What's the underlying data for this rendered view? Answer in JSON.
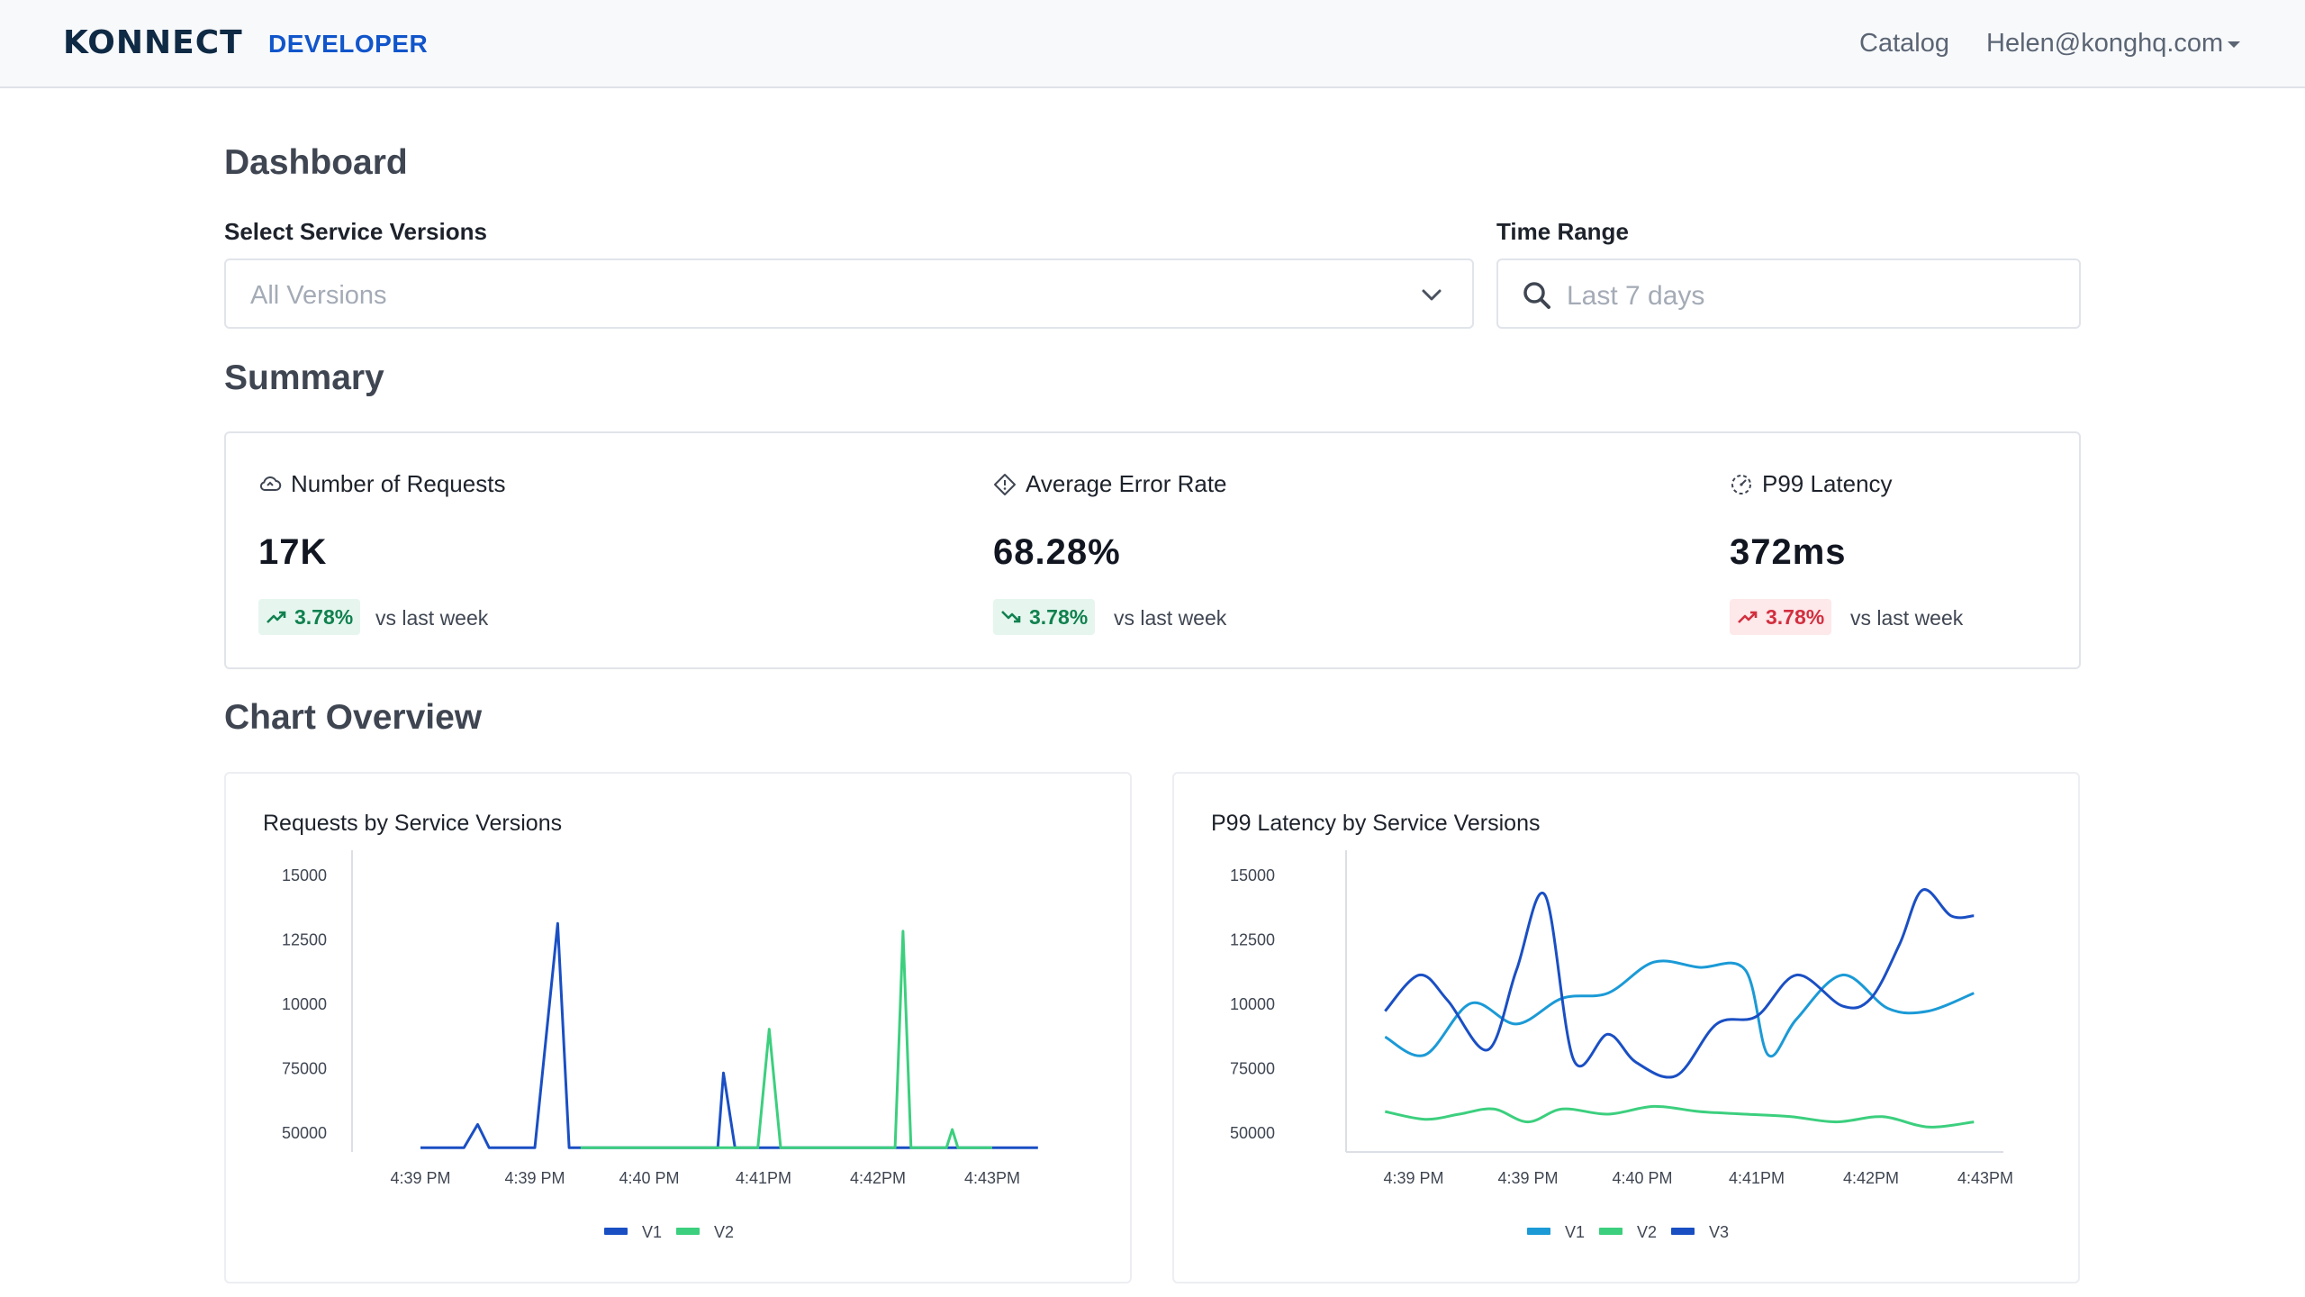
{
  "nav": {
    "logo": "KONNECT",
    "logo_sub": "DEVELOPER",
    "catalog": "Catalog",
    "user": "Helen@konghq.com"
  },
  "page": {
    "title": "Dashboard",
    "versions_label": "Select Service Versions",
    "versions_placeholder": "All Versions",
    "time_label": "Time Range",
    "time_placeholder": "Last 7 days",
    "summary_title": "Summary",
    "charts_title": "Chart Overview"
  },
  "summary": [
    {
      "icon": "cloud-icon",
      "title": "Number of Requests",
      "value": "17K",
      "change": "3.78%",
      "trend": "up",
      "status": "good",
      "compare": "vs last week"
    },
    {
      "icon": "diamond-alert-icon",
      "title": "Average Error Rate",
      "value": "68.28%",
      "change": "3.78%",
      "trend": "down",
      "status": "good",
      "compare": "vs last week"
    },
    {
      "icon": "gauge-icon",
      "title": "P99 Latency",
      "value": "372ms",
      "change": "3.78%",
      "trend": "up",
      "status": "bad",
      "compare": "vs last week"
    }
  ],
  "colors": {
    "v1_blue": "#1a4fc4",
    "v2_green": "#3ccf7e",
    "v1_teal": "#1b9ad6",
    "good": "#11814f",
    "bad": "#d22f3f"
  },
  "chart_data": [
    {
      "type": "line",
      "title": "Requests by Service Versions",
      "x_ticks": [
        "4:39 PM",
        "4:39 PM",
        "4:40 PM",
        "4:41PM",
        "4:42PM",
        "4:43PM"
      ],
      "y_ticks": [
        "15000",
        "12500",
        "10000",
        "75000",
        "50000"
      ],
      "grid": false,
      "legend": "bottom-center",
      "series": [
        {
          "name": "V1",
          "color": "#1a4fc4",
          "x": [
            0,
            0.38,
            0.5,
            0.6,
            1.0,
            1.2,
            1.3,
            1.4,
            2.6,
            2.65,
            2.75,
            2.85,
            5.25,
            5.4
          ],
          "y": [
            4400,
            4400,
            5300,
            4400,
            4400,
            13100,
            4400,
            4400,
            4400,
            7300,
            4400,
            4400,
            4400,
            4400
          ]
        },
        {
          "name": "V2",
          "color": "#3ccf7e",
          "x": [
            1.4,
            2.95,
            3.05,
            3.15,
            4.15,
            4.22,
            4.29,
            4.6,
            4.65,
            4.7,
            5.0
          ],
          "y": [
            4400,
            4400,
            9000,
            4400,
            4400,
            12800,
            4400,
            4400,
            5100,
            4400,
            4400
          ]
        }
      ]
    },
    {
      "type": "line",
      "title": "P99 Latency by Service Versions",
      "x_ticks": [
        "4:39 PM",
        "4:39 PM",
        "4:40 PM",
        "4:41PM",
        "4:42PM",
        "4:43PM"
      ],
      "y_ticks": [
        "15000",
        "12500",
        "10000",
        "75000",
        "50000"
      ],
      "grid": false,
      "legend": "bottom-center",
      "series": [
        {
          "name": "V1",
          "color": "#1b9ad6",
          "x": [
            -0.25,
            0.1,
            0.5,
            0.9,
            1.3,
            1.7,
            2.1,
            2.5,
            2.9,
            3.1,
            3.35,
            3.75,
            4.15,
            4.5,
            4.9
          ],
          "y": [
            8700,
            8000,
            10000,
            9200,
            10200,
            10400,
            11600,
            11400,
            11300,
            8000,
            9400,
            11100,
            9800,
            9700,
            10400
          ]
        },
        {
          "name": "V2",
          "color": "#3ccf7e",
          "x": [
            -0.25,
            0.1,
            0.4,
            0.7,
            1.0,
            1.3,
            1.7,
            2.1,
            2.5,
            2.9,
            3.3,
            3.7,
            4.1,
            4.5,
            4.9
          ],
          "y": [
            5800,
            5500,
            5700,
            5900,
            5400,
            5900,
            5700,
            6000,
            5800,
            5700,
            5600,
            5400,
            5600,
            5200,
            5400
          ]
        },
        {
          "name": "V3",
          "color": "#1a4fc4",
          "x": [
            -0.25,
            0.05,
            0.3,
            0.65,
            0.9,
            1.15,
            1.4,
            1.7,
            1.95,
            2.3,
            2.65,
            3.0,
            3.35,
            3.75,
            4.0,
            4.25,
            4.45,
            4.7,
            4.9
          ],
          "y": [
            9700,
            11100,
            10100,
            8200,
            11300,
            14200,
            7800,
            8800,
            7700,
            7200,
            9200,
            9500,
            11100,
            9900,
            10200,
            12300,
            14400,
            13400,
            13400
          ]
        }
      ]
    }
  ]
}
